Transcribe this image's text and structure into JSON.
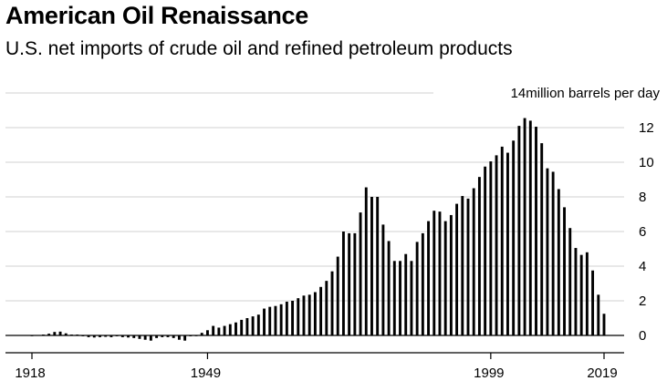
{
  "title": "American Oil Renaissance",
  "subtitle": "U.S. net imports of crude oil and refined petroleum products",
  "chart_data": {
    "type": "bar",
    "title": "American Oil Renaissance",
    "subtitle": "U.S. net imports of crude oil and refined petroleum products",
    "xlabel": "",
    "ylabel": "million barrels per day",
    "top_tick_label": "14million barrels per day",
    "x_start": 1918,
    "x_end": 2019,
    "x": [
      1918,
      1919,
      1920,
      1921,
      1922,
      1923,
      1924,
      1925,
      1926,
      1927,
      1928,
      1929,
      1930,
      1931,
      1932,
      1933,
      1934,
      1935,
      1936,
      1937,
      1938,
      1939,
      1940,
      1941,
      1942,
      1943,
      1944,
      1945,
      1946,
      1947,
      1948,
      1949,
      1950,
      1951,
      1952,
      1953,
      1954,
      1955,
      1956,
      1957,
      1958,
      1959,
      1960,
      1961,
      1962,
      1963,
      1964,
      1965,
      1966,
      1967,
      1968,
      1969,
      1970,
      1971,
      1972,
      1973,
      1974,
      1975,
      1976,
      1977,
      1978,
      1979,
      1980,
      1981,
      1982,
      1983,
      1984,
      1985,
      1986,
      1987,
      1988,
      1989,
      1990,
      1991,
      1992,
      1993,
      1994,
      1995,
      1996,
      1997,
      1998,
      1999,
      2000,
      2001,
      2002,
      2003,
      2004,
      2005,
      2006,
      2007,
      2008,
      2009,
      2010,
      2011,
      2012,
      2013,
      2014,
      2015,
      2016,
      2017,
      2018,
      2019
    ],
    "values": [
      0.0,
      0.02,
      0.05,
      0.1,
      0.2,
      0.22,
      0.12,
      0.05,
      0.05,
      -0.05,
      -0.1,
      -0.12,
      -0.1,
      -0.08,
      -0.1,
      -0.05,
      -0.1,
      -0.12,
      -0.15,
      -0.2,
      -0.25,
      -0.3,
      -0.15,
      -0.1,
      -0.1,
      -0.15,
      -0.25,
      -0.3,
      -0.05,
      0.0,
      0.15,
      0.3,
      0.55,
      0.45,
      0.55,
      0.65,
      0.75,
      0.9,
      1.0,
      1.1,
      1.2,
      1.55,
      1.65,
      1.7,
      1.8,
      1.95,
      2.0,
      2.15,
      2.3,
      2.35,
      2.5,
      2.8,
      3.15,
      3.7,
      4.55,
      6.0,
      5.9,
      5.9,
      7.1,
      8.55,
      8.0,
      8.0,
      6.4,
      5.45,
      4.3,
      4.3,
      4.7,
      4.3,
      5.4,
      5.9,
      6.6,
      7.2,
      7.15,
      6.6,
      6.95,
      7.6,
      8.05,
      7.9,
      8.5,
      9.15,
      9.75,
      10.05,
      10.4,
      10.9,
      10.55,
      11.25,
      12.1,
      12.55,
      12.4,
      12.05,
      11.1,
      9.65,
      9.45,
      8.45,
      7.4,
      6.2,
      5.05,
      4.65,
      4.8,
      3.75,
      2.35,
      1.25
    ],
    "ylim": [
      -0.5,
      14
    ],
    "yticks": [
      0,
      2,
      4,
      6,
      8,
      10,
      12,
      14
    ],
    "ytick_labels": [
      "0",
      "2",
      "4",
      "6",
      "8",
      "10",
      "12",
      "14"
    ],
    "xticks": [
      1918,
      1949,
      1999,
      2019
    ],
    "xtick_labels": [
      "1918",
      "1949",
      "1999",
      "2019"
    ],
    "grid": true
  }
}
